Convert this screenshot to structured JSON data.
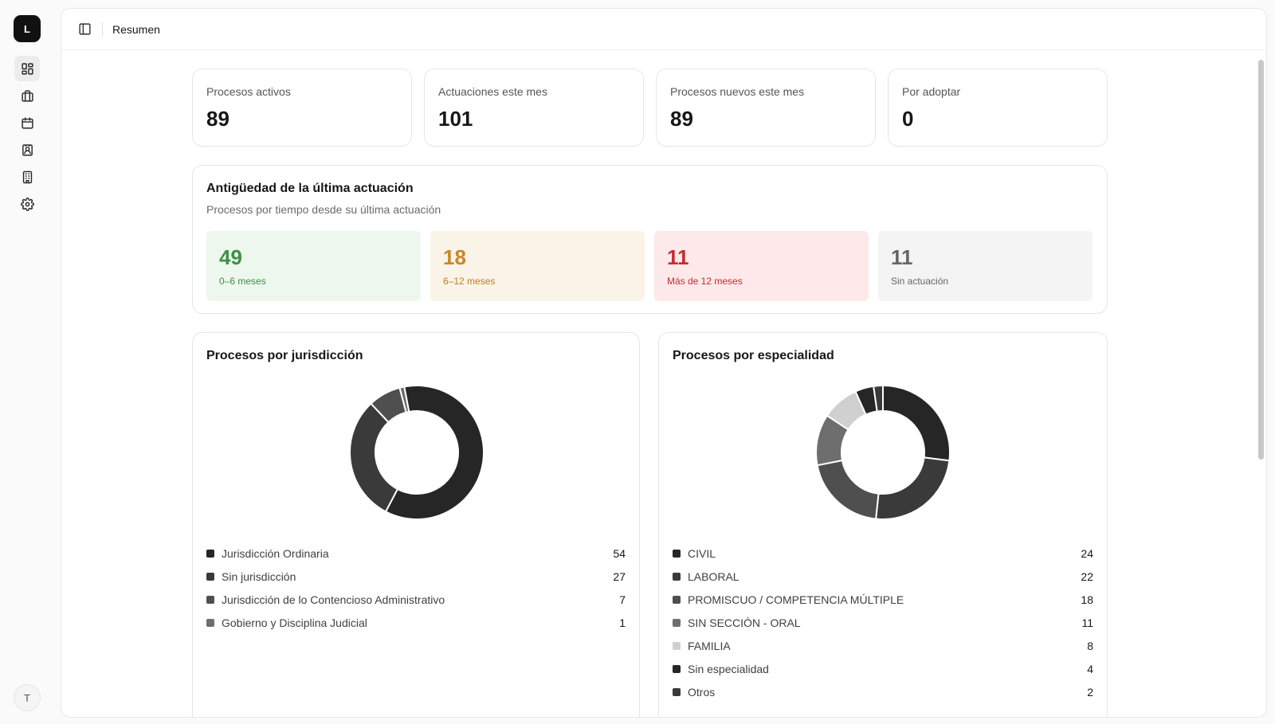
{
  "sidebar": {
    "logo": "L",
    "user_initial": "T",
    "items": [
      {
        "name": "dashboard-icon",
        "active": true
      },
      {
        "name": "briefcase-icon",
        "active": false
      },
      {
        "name": "calendar-icon",
        "active": false
      },
      {
        "name": "contact-icon",
        "active": false
      },
      {
        "name": "building-icon",
        "active": false
      },
      {
        "name": "gear-icon",
        "active": false
      }
    ]
  },
  "header": {
    "toggle_icon": "sidebar-toggle-icon",
    "breadcrumb": "Resumen"
  },
  "stats": [
    {
      "label": "Procesos activos",
      "value": "89"
    },
    {
      "label": "Actuaciones este mes",
      "value": "101"
    },
    {
      "label": "Procesos nuevos este mes",
      "value": "89"
    },
    {
      "label": "Por adoptar",
      "value": "0"
    }
  ],
  "antiguedad": {
    "title": "Antigüedad de la última actuación",
    "subtitle": "Procesos por tiempo desde su última actuación",
    "buckets": [
      {
        "value": "49",
        "label": "0–6 meses",
        "bg": "#eef7ee",
        "fg": "#3f8f45",
        "label_fg": "#3f8f45"
      },
      {
        "value": "18",
        "label": "6–12 meses",
        "bg": "#faf3e8",
        "fg": "#c9862c",
        "label_fg": "#c07d20"
      },
      {
        "value": "11",
        "label": "Más de 12 meses",
        "bg": "#fde9ea",
        "fg": "#c72a2e",
        "label_fg": "#c72a2e"
      },
      {
        "value": "11",
        "label": "Sin actuación",
        "bg": "#f4f4f4",
        "fg": "#666666",
        "label_fg": "#666666"
      }
    ]
  },
  "chart_data": [
    {
      "type": "pie",
      "title": "Procesos por jurisdicción",
      "categories": [
        "Jurisdicción Ordinaria",
        "Sin jurisdicción",
        "Jurisdicción de lo Contencioso Administrativo",
        "Gobierno y Disciplina Judicial"
      ],
      "values": [
        54,
        27,
        7,
        1
      ],
      "colors": [
        "#262626",
        "#3a3a3a",
        "#4f4f4f",
        "#6e6e6e"
      ]
    },
    {
      "type": "pie",
      "title": "Procesos por especialidad",
      "categories": [
        "CIVIL",
        "LABORAL",
        "PROMISCUO / COMPETENCIA MÚLTIPLE",
        "SIN SECCIÓN - ORAL",
        "FAMILIA",
        "Sin especialidad",
        "Otros"
      ],
      "values": [
        24,
        22,
        18,
        11,
        8,
        4,
        2
      ],
      "colors": [
        "#262626",
        "#3a3a3a",
        "#4f4f4f",
        "#6e6e6e",
        "#d0d0d0",
        "#262626",
        "#3a3a3a"
      ]
    }
  ]
}
